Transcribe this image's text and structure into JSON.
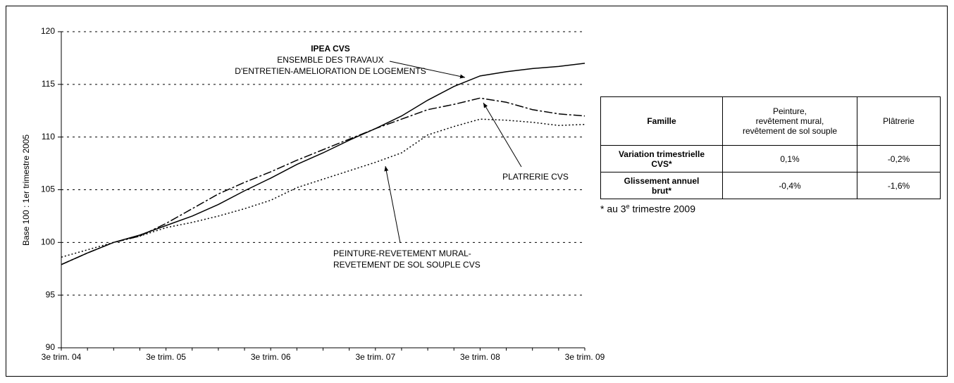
{
  "chart_data": {
    "type": "line",
    "ylabel": "Base 100 : 1er trimestre 2005",
    "categories": [
      "3e trim. 04",
      null,
      null,
      null,
      "3e trim. 05",
      null,
      null,
      null,
      "3e trim. 06",
      null,
      null,
      null,
      "3e trim. 07",
      null,
      null,
      null,
      "3e trim. 08",
      null,
      null,
      null,
      "3e trim. 09"
    ],
    "ylim": [
      90,
      120
    ],
    "yticks": [
      90,
      95,
      100,
      105,
      110,
      115,
      120
    ],
    "grid": true,
    "series": [
      {
        "name": "IPEA CVS",
        "notes": [
          "ENSEMBLE DES TRAVAUX",
          "D'ENTRETIEN-AMELIORATION DE LOGEMENTS"
        ],
        "color": "#000000",
        "style": "solid",
        "values": [
          97.9,
          99.0,
          100.0,
          100.7,
          101.6,
          102.5,
          103.6,
          104.9,
          106.1,
          107.4,
          108.5,
          109.7,
          110.8,
          112.0,
          113.5,
          114.8,
          115.8,
          116.2,
          116.5,
          116.7,
          117.0
        ]
      },
      {
        "name": "PLATRERIE CVS",
        "color": "#000000",
        "style": "dashdot",
        "values": [
          97.9,
          99.0,
          100.0,
          100.6,
          101.8,
          103.2,
          104.6,
          105.7,
          106.7,
          107.8,
          108.8,
          109.8,
          110.8,
          111.7,
          112.6,
          113.1,
          113.7,
          113.3,
          112.6,
          112.2,
          112.0
        ]
      },
      {
        "name": "PEINTURE-REVETEMENT MURAL-",
        "notes": [
          "REVETEMENT DE SOL SOUPLE CVS"
        ],
        "color": "#000000",
        "style": "dotted",
        "values": [
          98.6,
          99.3,
          100.0,
          100.6,
          101.4,
          101.9,
          102.5,
          103.2,
          104.0,
          105.2,
          106.0,
          106.8,
          107.6,
          108.5,
          110.2,
          111.0,
          111.7,
          111.6,
          111.4,
          111.1,
          111.2
        ]
      }
    ]
  },
  "table": {
    "header": [
      [
        "Famille"
      ],
      [
        "Peinture,",
        "revêtement mural,",
        "revêtement de sol souple"
      ],
      [
        "Plâtrerie"
      ]
    ],
    "rows": [
      [
        [
          "Variation trimestrielle",
          "CVS*"
        ],
        "0,1%",
        "-0,2%"
      ],
      [
        [
          "Glissement annuel",
          "brut*"
        ],
        "-0,4%",
        "-1,6%"
      ]
    ]
  },
  "footnote": {
    "before": "* au 3",
    "sup": "e",
    "after": " trimestre 2009"
  }
}
